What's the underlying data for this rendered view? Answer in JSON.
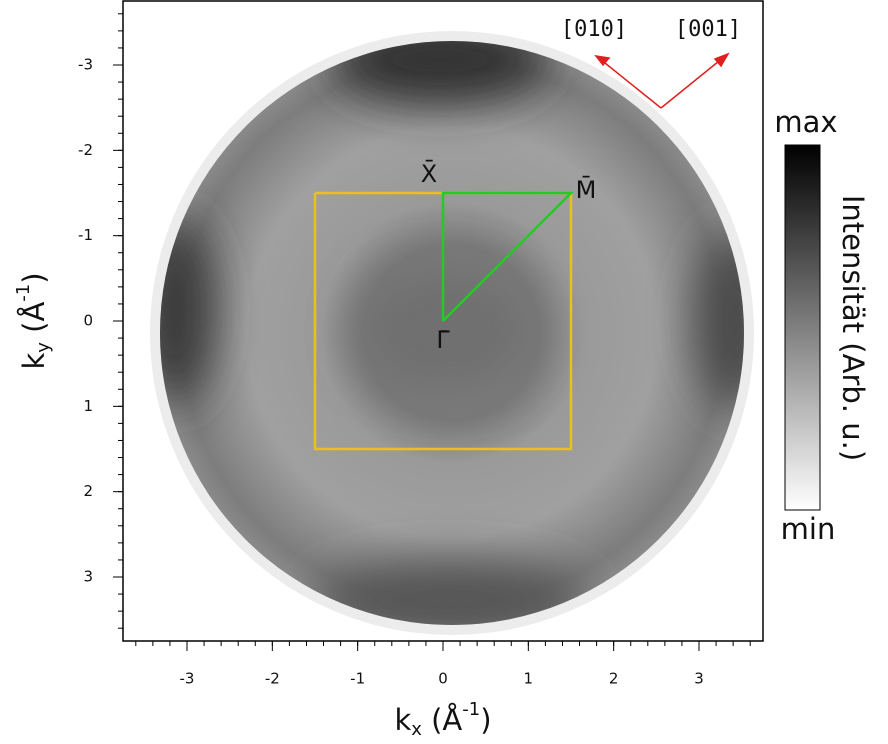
{
  "chart_data": {
    "type": "momentum-map",
    "xlabel": [
      "k",
      "x",
      " (Å",
      "-1",
      ")"
    ],
    "ylabel": [
      "k",
      "y",
      " (Å",
      "-1",
      ")"
    ],
    "xlim": [
      -3.75,
      3.75
    ],
    "ylim": [
      -3.75,
      3.75
    ],
    "y_inverted": true,
    "xticks": [
      -3,
      -2,
      -1,
      0,
      1,
      2,
      3
    ],
    "yticks": [
      -3,
      -2,
      -1,
      0,
      1,
      2,
      3
    ],
    "minor_tick_step": 0.2,
    "brillouin_zone": {
      "color": "#e8c21a",
      "x": [
        -1.5,
        1.5,
        1.5,
        -1.5,
        -1.5
      ],
      "y": [
        -1.5,
        -1.5,
        1.5,
        1.5,
        -1.5
      ]
    },
    "path": {
      "color": "#22cc22",
      "x": [
        0,
        0,
        1.5,
        0
      ],
      "y": [
        0,
        -1.5,
        -1.5,
        0
      ]
    },
    "points": [
      {
        "label": "Γ̄",
        "x": 0,
        "y": 0
      },
      {
        "label": "X̄",
        "x": 0,
        "y": -1.5
      },
      {
        "label": "M̄",
        "x": 1.5,
        "y": -1.5
      }
    ],
    "directions": [
      "[010]",
      "[001]"
    ],
    "colorbar": {
      "label": "Intensität (Arb. u.)",
      "max": "max",
      "min": "min"
    }
  }
}
